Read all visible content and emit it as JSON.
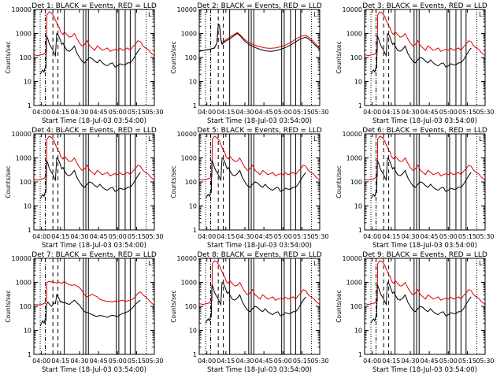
{
  "figure": {
    "title_template": "BLACK = Events, RED = LLD",
    "colors": {
      "events": "#000000",
      "lld": "#e00000",
      "axes": "#000000"
    }
  },
  "chart_data": {
    "type": "line",
    "ylabel": "Counts/sec",
    "xlabel": "Start Time (18-Jul-03 03:54:00)",
    "yscale": "log",
    "ylim": [
      1,
      10000
    ],
    "yticks": [
      1,
      10,
      100,
      1000,
      10000
    ],
    "ytick_labels": [
      "1",
      "10",
      "100",
      "1000",
      "10000"
    ],
    "xlim_min": [
      0,
      95
    ],
    "xticks_min": [
      6,
      21,
      36,
      51,
      66,
      81,
      96
    ],
    "xtick_labels": [
      "04:00",
      "04:15",
      "04:30",
      "04:45",
      "05:00",
      "05:15",
      "05:30"
    ],
    "panels": [
      {
        "label": "Det 1",
        "title": "Det 1: BLACK = Events, RED = LLD",
        "annot": "L",
        "variant": "a"
      },
      {
        "label": "Det 2",
        "title": "Det 2: BLACK = Events, RED = LLD",
        "annot": "L",
        "variant": "b"
      },
      {
        "label": "Det 3",
        "title": "Det 3: BLACK = Events, RED = LLD",
        "annot": "L",
        "variant": "a"
      },
      {
        "label": "Det 4",
        "title": "Det 4: BLACK = Events, RED = LLD",
        "annot": "L",
        "variant": "a"
      },
      {
        "label": "Det 5",
        "title": "Det 5: BLACK = Events, RED = LLD",
        "annot": "L",
        "variant": "a"
      },
      {
        "label": "Det 6",
        "title": "Det 6: BLACK = Events, RED = LLD",
        "annot": "L",
        "variant": "a"
      },
      {
        "label": "Det 7",
        "title": "Det 7: BLACK = Events, RED = LLD",
        "annot": "L",
        "variant": "c"
      },
      {
        "label": "Det 8",
        "title": "Det 8: BLACK = Events, RED = LLD",
        "annot": "L",
        "variant": "a"
      },
      {
        "label": "Det 9",
        "title": "Det 9: BLACK = Events, RED = LLD",
        "annot": "L",
        "variant": "a"
      }
    ],
    "series_variants": {
      "a": {
        "lld": {
          "x": [
            0,
            3,
            6,
            8,
            9,
            10,
            10.3,
            12,
            14,
            16,
            17,
            18,
            19,
            20,
            21,
            22,
            23,
            24,
            26,
            28,
            30,
            32,
            34,
            36,
            38,
            40,
            42,
            44,
            46,
            48,
            50,
            52,
            54,
            56,
            58,
            60,
            62,
            64,
            66,
            68,
            70,
            72,
            74,
            76,
            78,
            80,
            82,
            84,
            86,
            88,
            90,
            92,
            95
          ],
          "y": [
            130,
            120,
            130,
            140,
            160,
            170,
            6000,
            8000,
            7000,
            5000,
            3500,
            2800,
            2000,
            1800,
            1200,
            1000,
            900,
            1200,
            900,
            700,
            750,
            1000,
            600,
            400,
            300,
            350,
            500,
            300,
            250,
            200,
            300,
            250,
            200,
            220,
            250,
            180,
            200,
            220,
            200,
            240,
            200,
            220,
            250,
            200,
            280,
            350,
            500,
            450,
            300,
            250,
            220,
            160,
            120
          ]
        },
        "events": {
          "x": [
            5,
            6,
            7,
            8,
            9,
            9.5,
            10,
            11,
            12,
            13,
            14,
            15,
            16,
            17,
            18,
            19,
            20,
            21,
            22,
            23,
            24,
            26,
            28,
            30,
            32,
            34,
            36,
            38,
            40,
            42,
            44,
            46,
            48,
            50,
            52,
            54,
            56,
            58,
            60,
            62,
            64,
            66,
            68,
            70,
            72,
            74,
            76,
            78,
            80,
            82,
            84
          ],
          "y": [
            20,
            25,
            30,
            25,
            40,
            35,
            800,
            600,
            400,
            300,
            250,
            200,
            150,
            120,
            1000,
            900,
            700,
            500,
            350,
            400,
            300,
            200,
            180,
            220,
            300,
            150,
            100,
            70,
            60,
            80,
            100,
            90,
            70,
            60,
            80,
            60,
            50,
            45,
            55,
            60,
            40,
            45,
            55,
            50,
            50,
            60,
            60,
            80,
            120,
            180,
            250
          ]
        }
      },
      "b": {
        "lld": {
          "x": [
            0,
            4,
            8,
            12,
            14,
            15,
            16,
            17,
            18,
            20,
            24,
            28,
            30,
            32,
            34,
            36,
            40,
            44,
            48,
            52,
            56,
            60,
            64,
            68,
            72,
            76,
            80,
            84,
            88,
            92,
            95
          ],
          "y": [
            180,
            200,
            220,
            250,
            400,
            2500,
            2200,
            600,
            400,
            500,
            700,
            950,
            1100,
            900,
            700,
            550,
            400,
            320,
            280,
            250,
            240,
            250,
            280,
            330,
            420,
            580,
            750,
            850,
            600,
            350,
            250
          ]
        },
        "events": {
          "x": [
            0,
            4,
            8,
            12,
            14,
            15,
            16,
            17,
            18,
            20,
            24,
            28,
            30,
            32,
            34,
            36,
            40,
            44,
            48,
            52,
            56,
            60,
            64,
            68,
            72,
            76,
            80,
            84,
            88,
            92,
            95
          ],
          "y": [
            180,
            200,
            220,
            250,
            400,
            2500,
            2200,
            550,
            350,
            450,
            600,
            850,
            1000,
            820,
            620,
            470,
            330,
            260,
            220,
            190,
            180,
            190,
            220,
            260,
            330,
            450,
            600,
            700,
            500,
            300,
            220
          ]
        }
      },
      "c": {
        "lld": {
          "x": [
            0,
            3,
            6,
            8,
            9,
            10,
            10.3,
            12,
            14,
            16,
            18,
            20,
            22,
            24,
            26,
            28,
            30,
            32,
            34,
            36,
            38,
            40,
            42,
            44,
            46,
            48,
            50,
            52,
            54,
            56,
            58,
            60,
            62,
            64,
            66,
            68,
            70,
            72,
            74,
            76,
            78,
            80,
            82,
            84,
            86,
            88,
            90,
            92,
            95
          ],
          "y": [
            120,
            115,
            120,
            130,
            150,
            160,
            1000,
            1100,
            1050,
            1000,
            950,
            1000,
            900,
            1100,
            900,
            800,
            750,
            800,
            700,
            600,
            450,
            300,
            250,
            280,
            320,
            280,
            250,
            200,
            180,
            170,
            160,
            160,
            150,
            170,
            160,
            170,
            180,
            160,
            170,
            180,
            200,
            250,
            350,
            400,
            300,
            250,
            200,
            150,
            110
          ]
        },
        "events": {
          "x": [
            5,
            6,
            7,
            8,
            9,
            9.5,
            10,
            11,
            12,
            13,
            14,
            15,
            16,
            17,
            18,
            19,
            20,
            21,
            22,
            23,
            24,
            26,
            28,
            30,
            32,
            34,
            36,
            38,
            40,
            42,
            44,
            46,
            48,
            50,
            52,
            54,
            56,
            58,
            60,
            62,
            64,
            66,
            68,
            70,
            72,
            74,
            76,
            78,
            80,
            82,
            84
          ],
          "y": [
            15,
            20,
            25,
            20,
            30,
            25,
            120,
            150,
            130,
            110,
            100,
            120,
            140,
            130,
            300,
            250,
            200,
            150,
            160,
            140,
            150,
            130,
            120,
            150,
            180,
            140,
            110,
            80,
            60,
            55,
            50,
            45,
            40,
            38,
            42,
            40,
            38,
            35,
            40,
            42,
            40,
            38,
            45,
            50,
            55,
            60,
            70,
            90,
            120,
            150,
            180
          ]
        }
      }
    },
    "vlines_min": {
      "dotted": [
        5,
        88.5
      ],
      "dashdot": [
        9
      ],
      "dashed": [
        15,
        19
      ],
      "solid": [
        24,
        39,
        41,
        43,
        65,
        67,
        72,
        76,
        80
      ]
    }
  }
}
